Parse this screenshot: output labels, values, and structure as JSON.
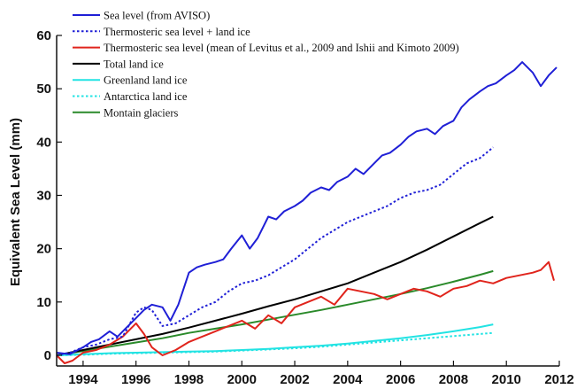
{
  "chart_data": {
    "type": "line",
    "title": "",
    "xlabel": "",
    "ylabel": "Equivalent Sea Level (mm)",
    "xlim": [
      1993,
      2012
    ],
    "ylim": [
      -2,
      60
    ],
    "x_ticks": [
      1994,
      1996,
      1998,
      2000,
      2002,
      2004,
      2006,
      2008,
      2010,
      2012
    ],
    "y_ticks": [
      0,
      10,
      20,
      30,
      40,
      50,
      60
    ],
    "grid": false,
    "legend_position": "top-left",
    "series": [
      {
        "name": "Sea level (from AVISO)",
        "color": "#1f1fd6",
        "dash": "solid",
        "x": [
          1993.0,
          1993.5,
          1994.0,
          1994.3,
          1994.6,
          1995.0,
          1995.3,
          1995.6,
          1996.0,
          1996.3,
          1996.6,
          1997.0,
          1997.3,
          1997.6,
          1998.0,
          1998.3,
          1998.6,
          1999.0,
          1999.3,
          1999.6,
          2000.0,
          2000.3,
          2000.6,
          2001.0,
          2001.3,
          2001.6,
          2002.0,
          2002.3,
          2002.6,
          2003.0,
          2003.3,
          2003.6,
          2004.0,
          2004.3,
          2004.6,
          2005.0,
          2005.3,
          2005.6,
          2006.0,
          2006.3,
          2006.6,
          2007.0,
          2007.3,
          2007.6,
          2008.0,
          2008.3,
          2008.6,
          2009.0,
          2009.3,
          2009.6,
          2010.0,
          2010.3,
          2010.6,
          2011.0,
          2011.3,
          2011.6,
          2011.9
        ],
        "y": [
          0.5,
          0.2,
          1.5,
          2.5,
          3.0,
          4.5,
          3.5,
          5.0,
          7.0,
          8.5,
          9.5,
          9.0,
          6.5,
          9.5,
          15.5,
          16.5,
          17.0,
          17.5,
          18.0,
          20.0,
          22.5,
          20.0,
          22.0,
          26.0,
          25.5,
          27.0,
          28.0,
          29.0,
          30.5,
          31.5,
          31.0,
          32.5,
          33.5,
          35.0,
          34.0,
          36.0,
          37.5,
          38.0,
          39.5,
          41.0,
          42.0,
          42.5,
          41.5,
          43.0,
          44.0,
          46.5,
          48.0,
          49.5,
          50.5,
          51.0,
          52.5,
          53.5,
          55.0,
          53.0,
          50.5,
          52.5,
          54.0
        ]
      },
      {
        "name": "Thermosteric sea level + land ice",
        "color": "#1f1fd6",
        "dash": "dotted",
        "x": [
          1993.0,
          1993.5,
          1994.0,
          1994.5,
          1995.0,
          1995.5,
          1996.0,
          1996.3,
          1996.6,
          1997.0,
          1997.5,
          1998.0,
          1998.5,
          1999.0,
          1999.5,
          2000.0,
          2000.5,
          2001.0,
          2001.5,
          2002.0,
          2002.5,
          2003.0,
          2003.5,
          2004.0,
          2004.5,
          2005.0,
          2005.5,
          2006.0,
          2006.5,
          2007.0,
          2007.5,
          2008.0,
          2008.5,
          2009.0,
          2009.5
        ],
        "y": [
          0.0,
          0.5,
          1.5,
          2.0,
          3.0,
          3.5,
          8.0,
          9.0,
          8.5,
          5.5,
          6.0,
          7.5,
          9.0,
          10.0,
          12.0,
          13.5,
          14.0,
          15.0,
          16.5,
          18.0,
          20.0,
          22.0,
          23.5,
          25.0,
          26.0,
          27.0,
          28.0,
          29.5,
          30.5,
          31.0,
          32.0,
          34.0,
          36.0,
          37.0,
          39.0
        ]
      },
      {
        "name": "Thermosteric sea level (mean of Levitus et al., 2009 and Ishii and Kimoto 2009)",
        "color": "#e0241c",
        "dash": "solid",
        "x": [
          1993.0,
          1993.3,
          1993.6,
          1994.0,
          1994.5,
          1995.0,
          1995.5,
          1996.0,
          1996.3,
          1996.6,
          1997.0,
          1997.5,
          1998.0,
          1998.5,
          1999.0,
          1999.5,
          2000.0,
          2000.5,
          2001.0,
          2001.5,
          2002.0,
          2002.5,
          2003.0,
          2003.5,
          2004.0,
          2004.5,
          2005.0,
          2005.5,
          2006.0,
          2006.5,
          2007.0,
          2007.5,
          2008.0,
          2008.5,
          2009.0,
          2009.5,
          2010.0,
          2010.5,
          2011.0,
          2011.3,
          2011.6,
          2011.8
        ],
        "y": [
          0.0,
          -1.5,
          -1.0,
          0.5,
          1.0,
          2.0,
          3.5,
          6.0,
          4.0,
          1.5,
          0.0,
          1.0,
          2.5,
          3.5,
          4.5,
          5.5,
          6.5,
          5.0,
          7.5,
          6.0,
          9.0,
          10.0,
          11.0,
          9.5,
          12.5,
          12.0,
          11.5,
          10.5,
          11.5,
          12.5,
          12.0,
          11.0,
          12.5,
          13.0,
          14.0,
          13.5,
          14.5,
          15.0,
          15.5,
          16.0,
          17.5,
          14.0
        ]
      },
      {
        "name": "Total land ice",
        "color": "#000000",
        "dash": "solid",
        "x": [
          1993.0,
          1994.0,
          1995.0,
          1996.0,
          1997.0,
          1998.0,
          1999.0,
          2000.0,
          2001.0,
          2002.0,
          2003.0,
          2004.0,
          2005.0,
          2006.0,
          2007.0,
          2008.0,
          2009.0,
          2009.5
        ],
        "y": [
          0.0,
          1.0,
          2.0,
          3.0,
          4.0,
          5.2,
          6.5,
          7.8,
          9.2,
          10.5,
          12.0,
          13.5,
          15.5,
          17.5,
          19.8,
          22.3,
          24.8,
          26.0
        ]
      },
      {
        "name": "Greenland land ice",
        "color": "#22e3e3",
        "dash": "solid",
        "x": [
          1993.0,
          1994.0,
          1995.0,
          1996.0,
          1997.0,
          1998.0,
          1999.0,
          2000.0,
          2001.0,
          2002.0,
          2003.0,
          2004.0,
          2005.0,
          2006.0,
          2007.0,
          2008.0,
          2009.0,
          2009.5
        ],
        "y": [
          0.0,
          0.2,
          0.4,
          0.5,
          0.6,
          0.7,
          0.8,
          1.0,
          1.2,
          1.5,
          1.8,
          2.2,
          2.7,
          3.2,
          3.8,
          4.5,
          5.3,
          5.8
        ]
      },
      {
        "name": "Antarctica land ice",
        "color": "#22e3e3",
        "dash": "dotted",
        "x": [
          1993.0,
          1994.0,
          1995.0,
          1996.0,
          1997.0,
          1998.0,
          1999.0,
          2000.0,
          2001.0,
          2002.0,
          2003.0,
          2004.0,
          2005.0,
          2006.0,
          2007.0,
          2008.0,
          2009.0,
          2009.5
        ],
        "y": [
          0.0,
          0.1,
          0.3,
          0.4,
          0.5,
          0.6,
          0.7,
          0.9,
          1.1,
          1.3,
          1.6,
          2.0,
          2.4,
          2.8,
          3.2,
          3.6,
          4.0,
          4.2
        ]
      },
      {
        "name": "Montain glaciers",
        "color": "#2a8a2a",
        "dash": "solid",
        "x": [
          1993.0,
          1994.0,
          1995.0,
          1996.0,
          1997.0,
          1998.0,
          1999.0,
          2000.0,
          2001.0,
          2002.0,
          2003.0,
          2004.0,
          2005.0,
          2006.0,
          2007.0,
          2008.0,
          2009.0,
          2009.5
        ],
        "y": [
          0.0,
          0.8,
          1.6,
          2.4,
          3.2,
          4.2,
          5.0,
          5.8,
          6.7,
          7.6,
          8.5,
          9.5,
          10.5,
          11.5,
          12.6,
          13.8,
          15.1,
          15.8
        ]
      }
    ]
  }
}
